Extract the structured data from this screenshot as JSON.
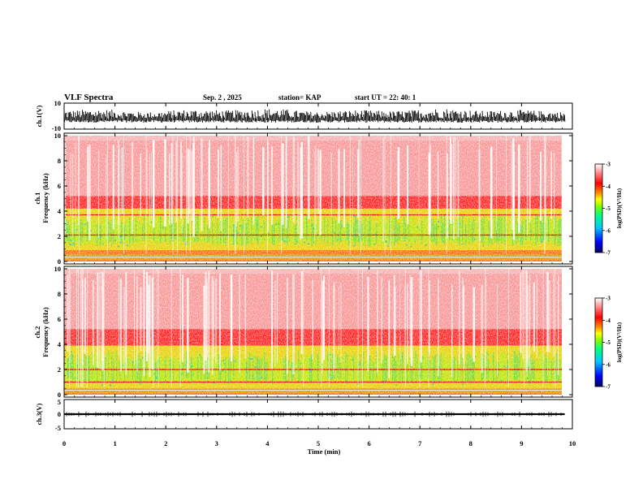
{
  "chart_data": [
    {
      "type": "line",
      "panel": "ch1-waveform",
      "title": "VLF Spectra",
      "date": "Sep. 2 , 2025",
      "station": "station= KAP",
      "start_ut": "start UT =  22: 40: 1",
      "ylabel": "ch.1(V)",
      "ylim": [
        -10,
        10
      ],
      "yticks": [
        "10",
        "-10"
      ],
      "signal_amplitude_range_v": [
        -5,
        8
      ]
    },
    {
      "type": "heatmap",
      "panel": "ch1-spectrogram",
      "ylabel": "ch.1 Frequency (kHz)",
      "ylabel_line1": "ch.1",
      "ylabel_line2": "Frequency (kHz)",
      "ylim": [
        0,
        10
      ],
      "yticks": [
        "0",
        "2",
        "4",
        "6",
        "8",
        "10"
      ],
      "colorbar": {
        "label": "log(PSD)(V²/Hz)",
        "range": [
          -7,
          -3
        ],
        "ticks": [
          "-3",
          "-4",
          "-5",
          "-6",
          "-7"
        ]
      },
      "green_band_khz": [
        1.2,
        3.8
      ],
      "horizontal_lines_khz": [
        2.1,
        3.7
      ]
    },
    {
      "type": "heatmap",
      "panel": "ch2-spectrogram",
      "ylabel": "ch.2 Frequency (kHz)",
      "ylabel_line1": "ch.2",
      "ylabel_line2": "Frequency (kHz)",
      "ylim": [
        0,
        10
      ],
      "yticks": [
        "0",
        "2",
        "4",
        "6",
        "8",
        "10"
      ],
      "colorbar": {
        "label": "log(PSD)(V²/Hz)",
        "range": [
          -7,
          -3
        ],
        "ticks": [
          "-3",
          "-4",
          "-5",
          "-6",
          "-7"
        ]
      },
      "green_band_khz": [
        0.8,
        3.5
      ],
      "horizontal_lines_khz": [
        1.0,
        2.0
      ]
    },
    {
      "type": "line",
      "panel": "ch3-waveform",
      "ylabel": "ch.3(V)",
      "ylim": [
        -5,
        5
      ],
      "yticks": [
        "5",
        "0",
        "-5"
      ],
      "signal_band_v": [
        -0.3,
        0.3
      ],
      "signal_center_v": 0
    }
  ],
  "x_axis": {
    "label": "Time (min)",
    "range": [
      0,
      10
    ],
    "data_end_min": 9.85,
    "ticks": [
      "0",
      "1",
      "2",
      "3",
      "4",
      "5",
      "6",
      "7",
      "8",
      "9",
      "10"
    ]
  },
  "colors": {
    "waveform": "#000000",
    "colormap": [
      "#000080",
      "#0000ff",
      "#00c8ff",
      "#00ff80",
      "#80ff00",
      "#ffff00",
      "#ff8000",
      "#ff0000",
      "#ffffff"
    ]
  }
}
